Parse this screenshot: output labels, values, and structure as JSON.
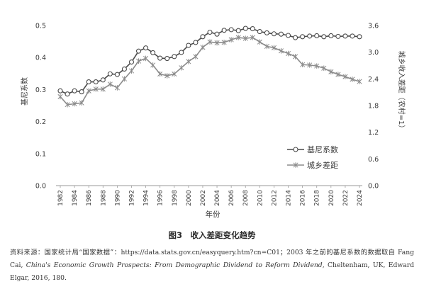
{
  "chart_data": {
    "type": "line",
    "title": "图3　收入差距变化趋势",
    "xlabel": "年份",
    "ylabel_left": "基尼系数",
    "ylabel_right": "城乡收入差距（农村=1）",
    "x": [
      1982,
      1983,
      1984,
      1985,
      1986,
      1987,
      1988,
      1989,
      1990,
      1991,
      1992,
      1993,
      1994,
      1995,
      1996,
      1997,
      1998,
      1999,
      2000,
      2001,
      2002,
      2003,
      2004,
      2005,
      2006,
      2007,
      2008,
      2009,
      2010,
      2011,
      2012,
      2013,
      2014,
      2015,
      2016,
      2017,
      2018,
      2019,
      2020,
      2021,
      2022,
      2023,
      2024
    ],
    "x_ticks": [
      "1982",
      "1984",
      "1986",
      "1988",
      "1990",
      "1992",
      "1994",
      "1996",
      "1998",
      "2000",
      "2002",
      "2004",
      "2006",
      "2008",
      "2010",
      "2012",
      "2014",
      "2016",
      "2018",
      "2020",
      "2022",
      "2024"
    ],
    "y_left_ticks": [
      "0.0",
      "0.1",
      "0.2",
      "0.3",
      "0.4",
      "0.5"
    ],
    "y_right_ticks": [
      "0.0",
      "0.6",
      "1.2",
      "1.8",
      "2.4",
      "3.0",
      "3.6"
    ],
    "ylim_left": [
      0,
      0.5
    ],
    "ylim_right": [
      0,
      3.6
    ],
    "legend_position": "lower-right",
    "series": [
      {
        "name": "基尼系数",
        "axis": "left",
        "marker": "circle",
        "color": "#4a4a4a",
        "values": [
          0.296,
          0.286,
          0.296,
          0.293,
          0.324,
          0.324,
          0.33,
          0.349,
          0.347,
          0.364,
          0.386,
          0.42,
          0.43,
          0.415,
          0.398,
          0.397,
          0.403,
          0.416,
          0.438,
          0.447,
          0.465,
          0.479,
          0.473,
          0.485,
          0.487,
          0.484,
          0.491,
          0.49,
          0.481,
          0.477,
          0.474,
          0.473,
          0.469,
          0.462,
          0.465,
          0.467,
          0.468,
          0.465,
          0.468,
          0.466,
          0.467,
          0.467,
          0.465
        ]
      },
      {
        "name": "城乡差距",
        "axis": "right",
        "marker": "asterisk",
        "color": "#8c8c8c",
        "values": [
          2.0,
          1.82,
          1.84,
          1.86,
          2.13,
          2.17,
          2.17,
          2.28,
          2.2,
          2.4,
          2.58,
          2.8,
          2.86,
          2.71,
          2.51,
          2.47,
          2.51,
          2.65,
          2.79,
          2.9,
          3.11,
          3.23,
          3.21,
          3.22,
          3.28,
          3.33,
          3.31,
          3.33,
          3.23,
          3.13,
          3.1,
          3.03,
          2.97,
          2.9,
          2.72,
          2.71,
          2.69,
          2.64,
          2.56,
          2.5,
          2.45,
          2.39,
          2.34
        ]
      }
    ]
  },
  "caption": "图3　收入差距变化趋势",
  "source": {
    "line1": "资料来源：国家统计局“国家数据”：https://data.stats.gov.cn/easyquery.htm?cn=C01；2003 年之前的基尼系数的数据取自 Fang Cai, ",
    "book": "China's Economic Growth Prospects: From Demographic Dividend to Reform Dividend",
    "line2": ", Cheltenham, UK, Edward Elgar, 2016, 180."
  }
}
